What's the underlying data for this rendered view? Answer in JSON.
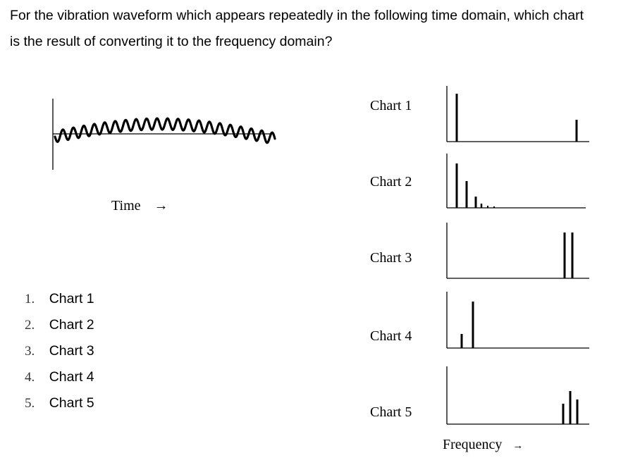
{
  "question": {
    "line1": "For the vibration waveform which appears repeatedly in the following time domain, which chart",
    "line2": "is the result of converting it to the frequency domain?"
  },
  "time_domain": {
    "axis_label": "Time",
    "arrow": "→"
  },
  "frequency_charts": [
    {
      "label": "Chart 1"
    },
    {
      "label": "Chart 2"
    },
    {
      "label": "Chart 3"
    },
    {
      "label": "Chart 4"
    },
    {
      "label": "Chart 5"
    }
  ],
  "frequency_axis": {
    "label": "Frequency",
    "arrow": "→"
  },
  "options": [
    {
      "number": "1.",
      "text": "Chart 1"
    },
    {
      "number": "2.",
      "text": "Chart 2"
    },
    {
      "number": "3.",
      "text": "Chart 3"
    },
    {
      "number": "4.",
      "text": "Chart 4"
    },
    {
      "number": "5.",
      "text": "Chart 5"
    }
  ]
}
